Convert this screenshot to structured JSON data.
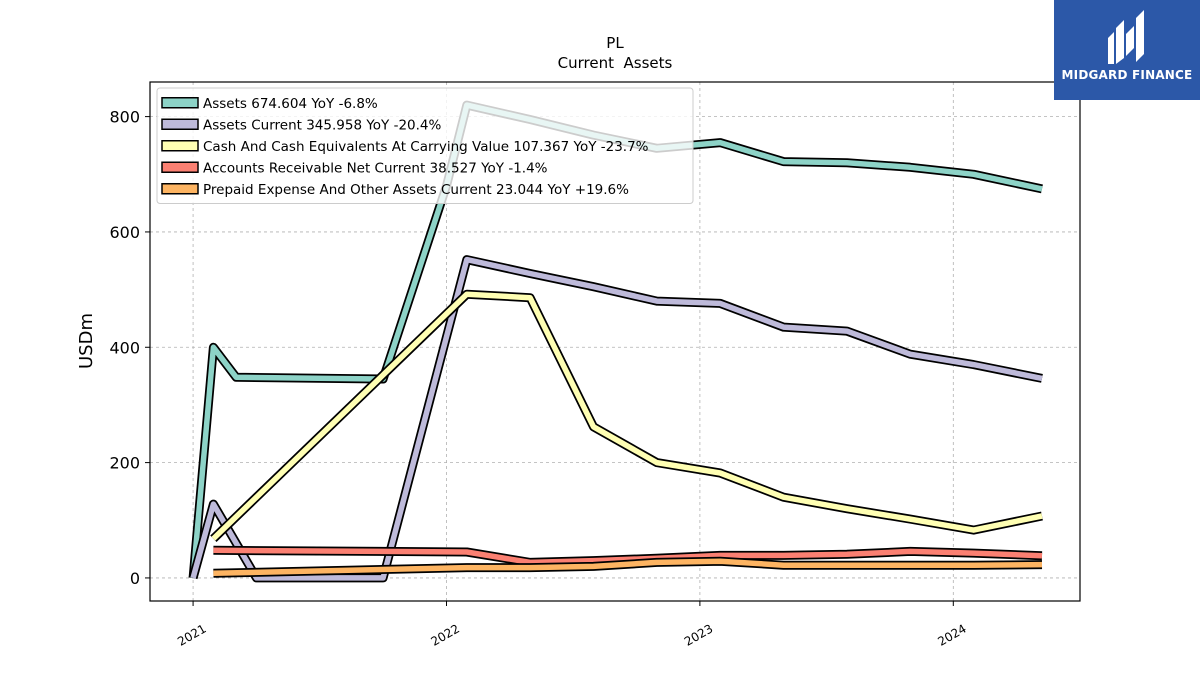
{
  "chart_data": {
    "type": "line",
    "title": "PL",
    "subtitle": "Current  Assets",
    "xlabel": "",
    "ylabel": "USDm",
    "ylim": [
      -40,
      860
    ],
    "xlim": [
      2020.83,
      2024.5
    ],
    "yticks": [
      0,
      200,
      400,
      600,
      800
    ],
    "xticks": [
      {
        "value": 2021,
        "label": "2021"
      },
      {
        "value": 2022,
        "label": "2022"
      },
      {
        "value": 2023,
        "label": "2023"
      },
      {
        "value": 2024,
        "label": "2024"
      }
    ],
    "grid": true,
    "legend_position": "top-left",
    "series": [
      {
        "name": "Assets  674.604 YoY -6.8%",
        "color": "#8dd3c7",
        "x": [
          2021.0,
          2021.08,
          2021.17,
          2021.75,
          2022.0,
          2022.08,
          2022.33,
          2022.58,
          2022.83,
          2023.08,
          2023.33,
          2023.58,
          2023.83,
          2024.08,
          2024.35
        ],
        "y": [
          0,
          400,
          348,
          345,
          680,
          820,
          795,
          768,
          745,
          755,
          722,
          720,
          712,
          700,
          674.604
        ]
      },
      {
        "name": "Assets Current  345.958 YoY -20.4%",
        "color": "#bebada",
        "x": [
          2021.0,
          2021.08,
          2021.25,
          2021.75,
          2022.08,
          2022.33,
          2022.58,
          2022.83,
          2023.08,
          2023.33,
          2023.58,
          2023.83,
          2024.08,
          2024.35
        ],
        "y": [
          0,
          128,
          0,
          0,
          552,
          528,
          505,
          480,
          476,
          435,
          428,
          388,
          370,
          345.958
        ]
      },
      {
        "name": "Cash And Cash Equivalents At Carrying Value  107.367 YoY -23.7%",
        "color": "#ffffb3",
        "x": [
          2021.08,
          2022.08,
          2022.33,
          2022.58,
          2022.83,
          2023.08,
          2023.33,
          2023.58,
          2023.83,
          2024.08,
          2024.35
        ],
        "y": [
          68,
          492,
          486,
          262,
          200,
          182,
          140,
          120,
          102,
          83,
          107.367
        ]
      },
      {
        "name": "Accounts Receivable Net Current  38.527 YoY -1.4%",
        "color": "#fb8072",
        "x": [
          2021.08,
          2022.08,
          2022.33,
          2022.58,
          2022.83,
          2023.08,
          2023.33,
          2023.58,
          2023.83,
          2024.08,
          2024.35
        ],
        "y": [
          48,
          45,
          27,
          30,
          34,
          39,
          39,
          41,
          46,
          43,
          38.527
        ]
      },
      {
        "name": "Prepaid Expense And Other Assets Current  23.044 YoY +19.6%",
        "color": "#fdb462",
        "x": [
          2021.08,
          2022.08,
          2022.33,
          2022.58,
          2022.83,
          2023.08,
          2023.33,
          2023.58,
          2023.83,
          2024.08,
          2024.35
        ],
        "y": [
          8,
          18,
          18,
          20,
          27,
          29,
          22,
          22,
          22,
          22,
          23.044
        ]
      }
    ]
  },
  "logo": {
    "text": "MIDGARD FINANCE",
    "background": "#2c58a8"
  }
}
